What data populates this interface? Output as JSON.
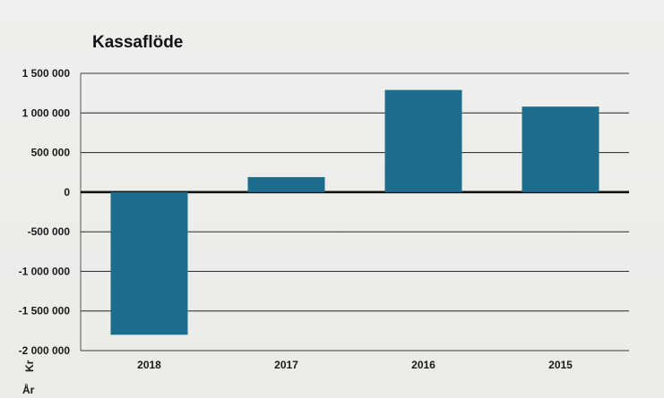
{
  "chart_data": {
    "type": "bar",
    "title": "Kassaflöde",
    "categories": [
      "2018",
      "2017",
      "2016",
      "2015"
    ],
    "values": [
      -1800000,
      190000,
      1290000,
      1080000
    ],
    "ylim": [
      -2000000,
      1500000
    ],
    "yticks": [
      1500000,
      1000000,
      500000,
      0,
      -500000,
      -1000000,
      -1500000,
      -2000000
    ],
    "ytick_labels": [
      "1 500 000",
      "1 000 000",
      "500 000",
      "0",
      "-500 000",
      "-1 000 000",
      "-1 500 000",
      "-2 000 000"
    ],
    "ylabel": "Kr",
    "xlabel": "År",
    "grid": true,
    "legend": "none",
    "bar_color": "#1d6e8c"
  }
}
